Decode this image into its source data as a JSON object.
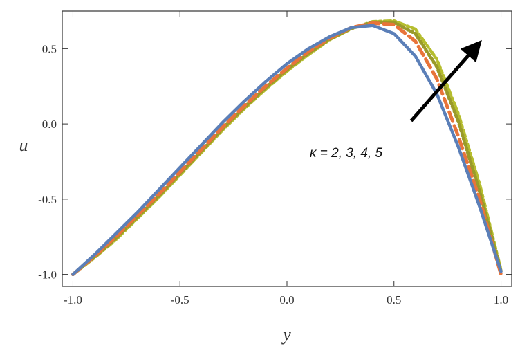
{
  "chart_data": {
    "type": "line",
    "title": "",
    "xlabel": "y",
    "ylabel": "u",
    "xlim": [
      -1.05,
      1.05
    ],
    "ylim": [
      -1.08,
      0.75
    ],
    "x_ticks": [
      -1.0,
      -0.5,
      0.0,
      0.5,
      1.0
    ],
    "x_tick_labels": [
      "-1.0",
      "-0.5",
      "0.0",
      "0.5",
      "1.0"
    ],
    "y_ticks": [
      -1.0,
      -0.5,
      0.0,
      0.5
    ],
    "y_tick_labels": [
      "-1.0",
      "-0.5",
      "0.0",
      "0.5"
    ],
    "grid": false,
    "legend": "none",
    "annotation": {
      "text": "κ = 2, 3, 4, 5",
      "arrow_from": [
        0.58,
        0.02
      ],
      "arrow_to": [
        0.9,
        0.54
      ]
    },
    "x": [
      -1.0,
      -0.9,
      -0.8,
      -0.7,
      -0.6,
      -0.5,
      -0.4,
      -0.3,
      -0.2,
      -0.1,
      0.0,
      0.1,
      0.2,
      0.3,
      0.4,
      0.5,
      0.6,
      0.7,
      0.8,
      0.9,
      1.0
    ],
    "series": [
      {
        "style": "solid",
        "color": "#5b7fb8",
        "values": [
          -1.0,
          -0.87,
          -0.73,
          -0.59,
          -0.44,
          -0.29,
          -0.14,
          0.01,
          0.15,
          0.28,
          0.4,
          0.5,
          0.58,
          0.64,
          0.655,
          0.6,
          0.45,
          0.2,
          -0.15,
          -0.55,
          -0.98
        ]
      },
      {
        "style": "dashed",
        "color": "#e8743a",
        "values": [
          -1.0,
          -0.88,
          -0.75,
          -0.61,
          -0.47,
          -0.32,
          -0.17,
          -0.02,
          0.12,
          0.25,
          0.37,
          0.48,
          0.57,
          0.64,
          0.67,
          0.66,
          0.55,
          0.3,
          -0.08,
          -0.5,
          -1.0
        ]
      },
      {
        "style": "dotted",
        "color": "#9a9a2a",
        "values": [
          -1.0,
          -0.885,
          -0.76,
          -0.62,
          -0.48,
          -0.33,
          -0.18,
          -0.03,
          0.11,
          0.24,
          0.36,
          0.47,
          0.565,
          0.635,
          0.675,
          0.675,
          0.6,
          0.38,
          0.02,
          -0.45,
          -0.98
        ]
      },
      {
        "style": "dashdot",
        "color": "#b5bd2e",
        "values": [
          -1.0,
          -0.89,
          -0.77,
          -0.63,
          -0.49,
          -0.34,
          -0.19,
          -0.04,
          0.1,
          0.23,
          0.35,
          0.46,
          0.56,
          0.632,
          0.68,
          0.685,
          0.63,
          0.43,
          0.07,
          -0.4,
          -0.97
        ]
      }
    ]
  }
}
